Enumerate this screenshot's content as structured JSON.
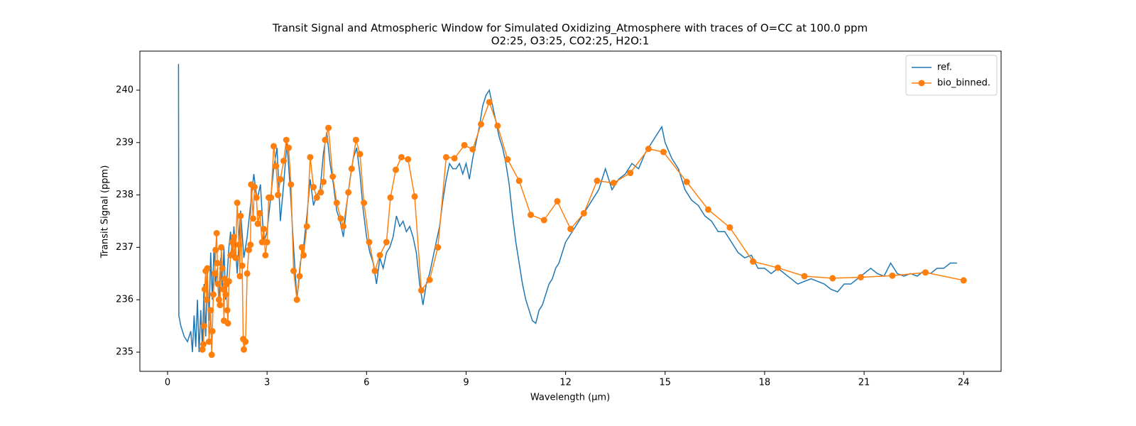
{
  "chart_data": {
    "type": "line",
    "title": "Transit Signal and Atmospheric Window for Simulated Oxidizing_Atmosphere with traces of O=CC at 100.0 ppm",
    "subtitle": "O2:25, O3:25, CO2:25, H2O:1",
    "x_label": "Wavelength (μm)",
    "y_label": "Transit Signal (ppm)",
    "xlim": [
      -0.835,
      25.13
    ],
    "ylim": [
      234.634,
      240.745
    ],
    "xticks": [
      0,
      3,
      6,
      9,
      12,
      15,
      18,
      21,
      24
    ],
    "yticks": [
      235,
      236,
      237,
      238,
      239,
      240
    ],
    "legend": "upper right",
    "series": [
      {
        "name": "ref.",
        "color": "#1f77b4",
        "marker": false,
        "x": [
          0.33,
          0.34,
          0.4,
          0.5,
          0.6,
          0.7,
          0.75,
          0.8,
          0.85,
          0.9,
          0.95,
          1.0,
          1.05,
          1.1,
          1.15,
          1.2,
          1.25,
          1.3,
          1.35,
          1.4,
          1.45,
          1.5,
          1.55,
          1.6,
          1.65,
          1.7,
          1.75,
          1.8,
          1.85,
          1.9,
          1.95,
          2.0,
          2.1,
          2.2,
          2.3,
          2.4,
          2.5,
          2.6,
          2.7,
          2.8,
          2.9,
          3.0,
          3.1,
          3.2,
          3.3,
          3.4,
          3.5,
          3.6,
          3.7,
          3.8,
          3.9,
          4.0,
          4.1,
          4.2,
          4.3,
          4.4,
          4.5,
          4.6,
          4.7,
          4.8,
          4.9,
          5.0,
          5.1,
          5.2,
          5.3,
          5.4,
          5.5,
          5.6,
          5.7,
          5.8,
          5.9,
          6.0,
          6.1,
          6.2,
          6.3,
          6.4,
          6.5,
          6.6,
          6.7,
          6.8,
          6.9,
          7.0,
          7.1,
          7.2,
          7.3,
          7.4,
          7.5,
          7.6,
          7.7,
          7.8,
          7.9,
          8.0,
          8.1,
          8.2,
          8.3,
          8.4,
          8.5,
          8.6,
          8.7,
          8.8,
          8.9,
          9.0,
          9.1,
          9.2,
          9.3,
          9.4,
          9.5,
          9.6,
          9.7,
          9.8,
          9.9,
          10.0,
          10.1,
          10.2,
          10.3,
          10.4,
          10.5,
          10.6,
          10.7,
          10.8,
          10.9,
          11.0,
          11.1,
          11.2,
          11.3,
          11.4,
          11.5,
          11.6,
          11.7,
          11.8,
          11.9,
          12.0,
          12.2,
          12.4,
          12.6,
          12.8,
          13.0,
          13.2,
          13.4,
          13.6,
          13.8,
          14.0,
          14.2,
          14.4,
          14.6,
          14.8,
          14.9,
          15.0,
          15.2,
          15.4,
          15.6,
          15.8,
          16.0,
          16.2,
          16.4,
          16.6,
          16.8,
          17.0,
          17.2,
          17.4,
          17.6,
          17.8,
          18.0,
          18.2,
          18.4,
          18.6,
          18.8,
          19.0,
          19.2,
          19.4,
          19.6,
          19.8,
          20.0,
          20.2,
          20.4,
          20.6,
          20.8,
          21.0,
          21.2,
          21.4,
          21.6,
          21.8,
          22.0,
          22.2,
          22.4,
          22.6,
          22.8,
          23.0,
          23.2,
          23.4,
          23.6,
          23.8
        ],
        "values": [
          240.5,
          235.7,
          235.5,
          235.3,
          235.2,
          235.4,
          235.0,
          235.7,
          235.1,
          236.0,
          235.0,
          235.8,
          235.1,
          236.3,
          235.3,
          236.5,
          235.6,
          236.9,
          236.0,
          237.0,
          236.3,
          236.6,
          235.9,
          236.8,
          236.2,
          237.0,
          236.0,
          236.5,
          237.0,
          237.3,
          236.8,
          237.4,
          236.5,
          237.7,
          236.8,
          237.2,
          237.8,
          238.4,
          237.9,
          238.2,
          237.1,
          237.3,
          237.9,
          238.5,
          238.9,
          237.5,
          238.2,
          239.0,
          238.1,
          237.0,
          236.0,
          236.7,
          237.0,
          237.6,
          238.3,
          237.8,
          238.0,
          238.1,
          238.8,
          239.2,
          238.6,
          238.2,
          237.7,
          237.5,
          237.2,
          237.8,
          238.3,
          238.7,
          238.9,
          238.4,
          237.7,
          237.2,
          236.9,
          236.7,
          236.3,
          236.8,
          236.6,
          236.9,
          237.0,
          237.2,
          237.6,
          237.4,
          237.5,
          237.3,
          237.4,
          237.2,
          236.9,
          236.3,
          235.9,
          236.3,
          236.5,
          236.8,
          237.1,
          237.4,
          237.9,
          238.3,
          238.6,
          238.5,
          238.5,
          238.6,
          238.4,
          238.6,
          238.3,
          238.7,
          239.0,
          239.3,
          239.7,
          239.9,
          240.0,
          239.7,
          239.4,
          239.1,
          238.9,
          238.6,
          238.2,
          237.6,
          237.1,
          236.7,
          236.3,
          236.0,
          235.8,
          235.6,
          235.55,
          235.8,
          235.9,
          236.1,
          236.3,
          236.4,
          236.6,
          236.7,
          236.9,
          237.1,
          237.3,
          237.5,
          237.7,
          237.9,
          238.1,
          238.5,
          238.1,
          238.3,
          238.4,
          238.6,
          238.5,
          238.8,
          239.0,
          239.2,
          239.3,
          239.0,
          238.7,
          238.5,
          238.1,
          237.9,
          237.8,
          237.6,
          237.5,
          237.3,
          237.3,
          237.1,
          236.9,
          236.8,
          236.85,
          236.6,
          236.6,
          236.5,
          236.6,
          236.5,
          236.4,
          236.3,
          236.35,
          236.4,
          236.35,
          236.3,
          236.2,
          236.15,
          236.3,
          236.3,
          236.4,
          236.5,
          236.6,
          236.5,
          236.45,
          236.7,
          236.5,
          236.45,
          236.5,
          236.45,
          236.55,
          236.5,
          236.6,
          236.6,
          236.7,
          236.7
        ]
      },
      {
        "name": "bio_binned.",
        "color": "#ff7f0e",
        "marker": true,
        "x": [
          1.05,
          1.08,
          1.1,
          1.12,
          1.15,
          1.18,
          1.2,
          1.25,
          1.3,
          1.33,
          1.35,
          1.38,
          1.42,
          1.45,
          1.48,
          1.5,
          1.52,
          1.55,
          1.58,
          1.62,
          1.65,
          1.68,
          1.7,
          1.72,
          1.75,
          1.78,
          1.8,
          1.82,
          1.85,
          1.9,
          1.95,
          1.98,
          2.0,
          2.05,
          2.1,
          2.15,
          2.18,
          2.2,
          2.25,
          2.28,
          2.3,
          2.35,
          2.4,
          2.45,
          2.5,
          2.52,
          2.58,
          2.62,
          2.68,
          2.72,
          2.78,
          2.85,
          2.9,
          2.95,
          3.0,
          3.05,
          3.12,
          3.2,
          3.27,
          3.33,
          3.4,
          3.5,
          3.58,
          3.65,
          3.72,
          3.8,
          3.9,
          3.98,
          4.05,
          4.1,
          4.2,
          4.3,
          4.4,
          4.5,
          4.62,
          4.7,
          4.75,
          4.85,
          4.98,
          5.1,
          5.22,
          5.3,
          5.45,
          5.55,
          5.68,
          5.8,
          5.92,
          6.08,
          6.25,
          6.4,
          6.6,
          6.72,
          6.88,
          7.05,
          7.25,
          7.45,
          7.65,
          7.9,
          8.15,
          8.4,
          8.65,
          8.95,
          9.2,
          9.45,
          9.7,
          9.95,
          10.25,
          10.6,
          10.95,
          11.35,
          11.75,
          12.15,
          12.55,
          12.95,
          13.45,
          13.95,
          14.5,
          14.95,
          15.65,
          16.3,
          16.95,
          17.65,
          18.4,
          19.2,
          20.05,
          20.9,
          21.85,
          22.85,
          24.0
        ],
        "values": [
          235.05,
          235.15,
          235.5,
          236.2,
          236.55,
          236.0,
          236.6,
          235.2,
          235.8,
          234.95,
          235.4,
          236.1,
          236.5,
          236.95,
          237.27,
          236.7,
          236.3,
          236.0,
          235.9,
          237.0,
          236.6,
          236.2,
          235.6,
          236.4,
          236.1,
          236.3,
          235.8,
          235.55,
          236.35,
          236.85,
          237.1,
          236.9,
          237.2,
          236.8,
          237.85,
          237.05,
          236.45,
          237.6,
          236.65,
          235.25,
          235.05,
          235.2,
          236.5,
          236.95,
          237.05,
          238.2,
          237.55,
          238.15,
          237.95,
          237.45,
          237.65,
          237.1,
          237.35,
          236.85,
          237.1,
          237.95,
          237.95,
          238.93,
          238.55,
          238.0,
          238.3,
          238.65,
          239.05,
          238.9,
          238.2,
          236.55,
          236.0,
          236.45,
          237.0,
          236.85,
          237.4,
          238.72,
          238.15,
          237.95,
          238.05,
          238.25,
          239.05,
          239.28,
          238.35,
          237.85,
          237.55,
          237.4,
          238.05,
          238.5,
          239.05,
          238.78,
          237.85,
          237.1,
          236.55,
          236.85,
          237.1,
          237.95,
          238.48,
          238.72,
          238.68,
          237.97,
          236.18,
          236.38,
          237.0,
          238.72,
          238.7,
          238.95,
          238.87,
          239.35,
          239.77,
          239.32,
          238.68,
          238.27,
          237.62,
          237.52,
          237.88,
          237.35,
          237.65,
          238.27,
          238.23,
          238.42,
          238.88,
          238.82,
          238.25,
          237.72,
          237.38,
          236.73,
          236.61,
          236.45,
          236.41,
          236.43,
          236.46,
          236.52,
          236.37
        ]
      }
    ]
  }
}
